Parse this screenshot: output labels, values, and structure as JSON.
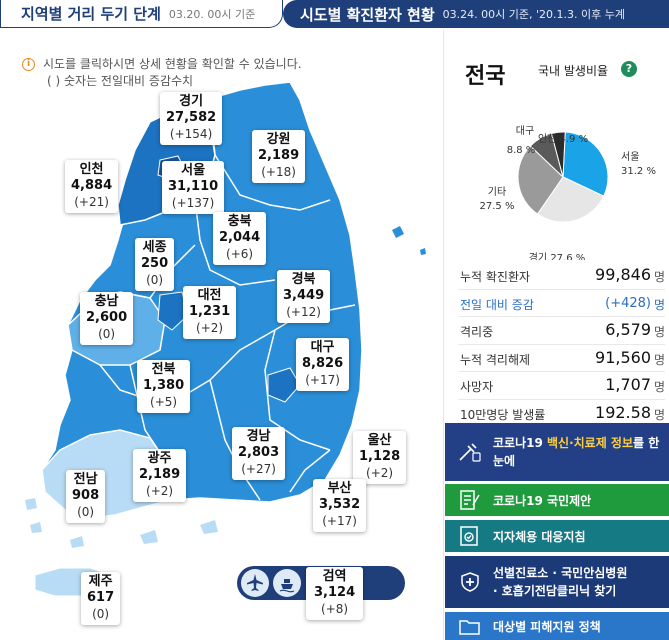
{
  "header": {
    "dist_tab_title": "지역별 거리 두기 단계",
    "dist_tab_date": "03.20. 00시 기준",
    "status_tab_title": "시도별 확진환자 현황",
    "status_tab_date": "03.24. 00시 기준, '20.1.3. 이후 누계"
  },
  "notice": {
    "line1": "시도를 클릭하시면 상세 현황을 확인할 수 있습니다.",
    "line2": "( ) 숫자는 전일대비 증감수치"
  },
  "regions": {
    "gyeonggi": {
      "name": "경기",
      "count": "27,582",
      "delta": "(+154)"
    },
    "gangwon": {
      "name": "강원",
      "count": "2,189",
      "delta": "(+18)"
    },
    "incheon": {
      "name": "인천",
      "count": "4,884",
      "delta": "(+21)"
    },
    "seoul": {
      "name": "서울",
      "count": "31,110",
      "delta": "(+137)"
    },
    "chungbuk": {
      "name": "충북",
      "count": "2,044",
      "delta": "(+6)"
    },
    "sejong": {
      "name": "세종",
      "count": "250",
      "delta": "(0)"
    },
    "chungnam": {
      "name": "충남",
      "count": "2,600",
      "delta": "(0)"
    },
    "daejeon": {
      "name": "대전",
      "count": "1,231",
      "delta": "(+2)"
    },
    "gyeongbuk": {
      "name": "경북",
      "count": "3,449",
      "delta": "(+12)"
    },
    "jeonbuk": {
      "name": "전북",
      "count": "1,380",
      "delta": "(+5)"
    },
    "daegu": {
      "name": "대구",
      "count": "8,826",
      "delta": "(+17)"
    },
    "gyeongnam": {
      "name": "경남",
      "count": "2,803",
      "delta": "(+27)"
    },
    "ulsan": {
      "name": "울산",
      "count": "1,128",
      "delta": "(+2)"
    },
    "gwangju": {
      "name": "광주",
      "count": "2,189",
      "delta": "(+2)"
    },
    "jeonnam": {
      "name": "전남",
      "count": "908",
      "delta": "(0)"
    },
    "busan": {
      "name": "부산",
      "count": "3,532",
      "delta": "(+17)"
    },
    "quarantine": {
      "name": "검역",
      "count": "3,124",
      "delta": "(+8)"
    },
    "jeju": {
      "name": "제주",
      "count": "617",
      "delta": "(0)"
    }
  },
  "colors": {
    "navy": "#1f3f7a",
    "map_dark": "#1b73c2",
    "map_mid": "#2a8fd8",
    "map_light": "#5fb0e8",
    "map_pale": "#b8dcf5"
  },
  "national": {
    "title": "전국",
    "ratio_label": "국내 발생비율",
    "help": "?",
    "pie": [
      {
        "label": "서울",
        "pct": "31.2 %",
        "value": 31.2,
        "color": "#1aa3e6"
      },
      {
        "label": "경기",
        "pct": "27.6 %",
        "value": 27.6,
        "color": "#e6e6e6"
      },
      {
        "label": "기타",
        "pct": "27.5 %",
        "value": 27.5,
        "color": "#9a9a9a"
      },
      {
        "label": "대구",
        "pct": "8.8 %",
        "value": 8.8,
        "color": "#5a5a5a"
      },
      {
        "label": "인천",
        "pct": "4.9 %",
        "value": 4.9,
        "color": "#2b2b2b"
      }
    ],
    "stats": [
      {
        "label": "누적 확진환자",
        "value": "99,846",
        "unit": "명"
      },
      {
        "label": "전일 대비 증감",
        "value": "(+428)",
        "unit": "명"
      },
      {
        "label": "격리중",
        "value": "6,579",
        "unit": "명"
      },
      {
        "label": "누적 격리해제",
        "value": "91,560",
        "unit": "명"
      },
      {
        "label": "사망자",
        "value": "1,707",
        "unit": "명"
      },
      {
        "label": "10만명당 발생률",
        "value": "192.58",
        "unit": "명"
      }
    ]
  },
  "banners": {
    "vaccine_a": "코로나19 ",
    "vaccine_hl": "백신·치료제 정보",
    "vaccine_b": "를 한눈에",
    "proposal": "코로나19 국민제안",
    "guideline": "지자체용 대응지침",
    "clinic_1": "선별진료소 · 국민안심병원",
    "clinic_2": "· 호흡기전담클리닉 찾기",
    "policy": "대상별 피해지원 정책"
  }
}
